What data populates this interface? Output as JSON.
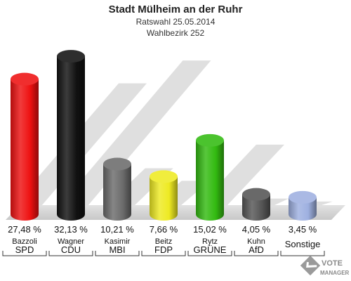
{
  "chart_data": {
    "type": "bar",
    "title": "Stadt Mülheim an der Ruhr",
    "subtitle_1": "Ratswahl 25.05.2014",
    "subtitle_2": "Wahlbezirk 252",
    "ylim": [
      0,
      35
    ],
    "grid": false,
    "categories": [
      {
        "party": "SPD",
        "candidate": "Bazzoli",
        "value": 27.48,
        "label": "27,48 %",
        "color": "#ee1111"
      },
      {
        "party": "CDU",
        "candidate": "Wagner",
        "value": 32.13,
        "label": "32,13 %",
        "color": "#111111"
      },
      {
        "party": "MBI",
        "candidate": "Kasimir",
        "value": 10.21,
        "label": "10,21 %",
        "color": "#6b6b6b"
      },
      {
        "party": "FDP",
        "candidate": "Beitz",
        "value": 7.66,
        "label": "7,66 %",
        "color": "#eeea22"
      },
      {
        "party": "GRÜNE",
        "candidate": "Rytz",
        "value": 15.02,
        "label": "15,02 %",
        "color": "#33bb11"
      },
      {
        "party": "AfD",
        "candidate": "Kuhn",
        "value": 4.05,
        "label": "4,05 %",
        "color": "#555555"
      },
      {
        "party": "Sonstige",
        "candidate": "",
        "value": 3.45,
        "label": "3,45 %",
        "color": "#9eb0e0"
      }
    ]
  },
  "logo": {
    "line1": "VOTE",
    "line2": "MANAGER"
  }
}
